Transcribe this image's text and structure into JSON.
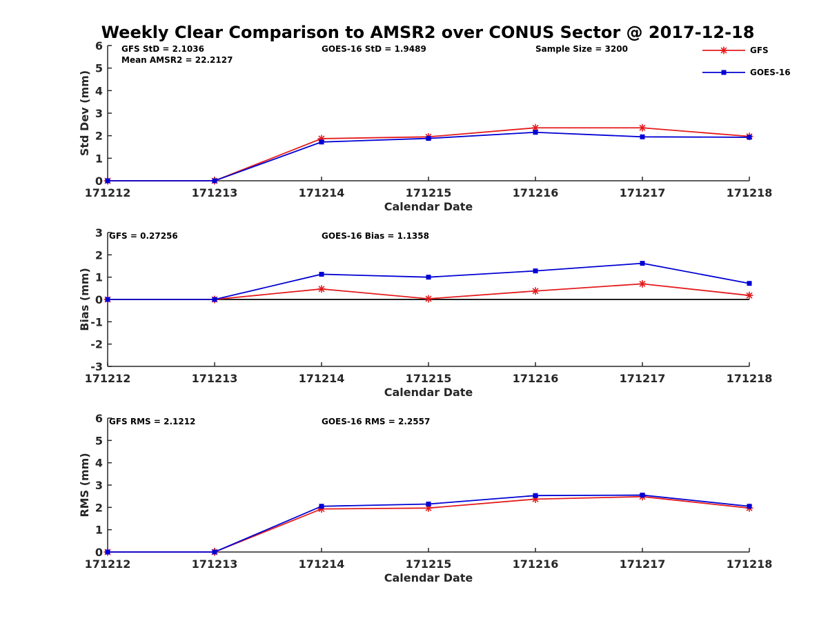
{
  "title": "Weekly Clear Comparison to AMSR2 over CONUS Sector @ 2017-12-18",
  "legend": {
    "placement": "top-right",
    "entries": [
      {
        "name": "GFS",
        "color": "#e41a1c",
        "marker": "asterisk"
      },
      {
        "name": "GOES-16",
        "color": "#0000d4",
        "marker": "square"
      }
    ]
  },
  "chart_data": [
    {
      "type": "line",
      "xlabel": "Calendar Date",
      "ylabel": "Std Dev (mm)",
      "categories": [
        "171212",
        "171213",
        "171214",
        "171215",
        "171216",
        "171217",
        "171218"
      ],
      "ylim": [
        0,
        6
      ],
      "yticks": [
        "0",
        "1",
        "2",
        "3",
        "4",
        "5",
        "6"
      ],
      "zero_line": false,
      "annotations": [
        "GFS StD = 2.1036",
        "Mean AMSR2 = 22.2127",
        "GOES-16 StD = 1.9489",
        "Sample Size = 3200"
      ],
      "series": [
        {
          "name": "GFS",
          "values": [
            0,
            0,
            1.87,
            1.95,
            2.35,
            2.35,
            1.97
          ]
        },
        {
          "name": "GOES-16",
          "values": [
            0,
            0,
            1.72,
            1.88,
            2.15,
            1.95,
            1.93
          ]
        }
      ]
    },
    {
      "type": "line",
      "xlabel": "Calendar Date",
      "ylabel": "Bias (mm)",
      "categories": [
        "171212",
        "171213",
        "171214",
        "171215",
        "171216",
        "171217",
        "171218"
      ],
      "ylim": [
        -3,
        3
      ],
      "yticks": [
        "-3",
        "-2",
        "-1",
        "0",
        "1",
        "2",
        "3"
      ],
      "zero_line": true,
      "annotations": [
        "GFS = 0.27256",
        "GOES-16 Bias  = 1.1358"
      ],
      "series": [
        {
          "name": "GFS",
          "values": [
            0,
            0,
            0.47,
            0.03,
            0.38,
            0.7,
            0.18
          ]
        },
        {
          "name": "GOES-16",
          "values": [
            0,
            0,
            1.13,
            1.0,
            1.28,
            1.62,
            0.72
          ]
        }
      ]
    },
    {
      "type": "line",
      "xlabel": "Calendar Date",
      "ylabel": "RMS (mm)",
      "categories": [
        "171212",
        "171213",
        "171214",
        "171215",
        "171216",
        "171217",
        "171218"
      ],
      "ylim": [
        0,
        6
      ],
      "yticks": [
        "0",
        "1",
        "2",
        "3",
        "4",
        "5",
        "6"
      ],
      "zero_line": false,
      "annotations": [
        "GFS RMS = 2.1212",
        "GOES-16 RMS = 2.2557"
      ],
      "series": [
        {
          "name": "GFS",
          "values": [
            0,
            0,
            1.93,
            1.97,
            2.37,
            2.48,
            1.97
          ]
        },
        {
          "name": "GOES-16",
          "values": [
            0,
            0,
            2.05,
            2.15,
            2.53,
            2.55,
            2.05
          ]
        }
      ]
    }
  ]
}
